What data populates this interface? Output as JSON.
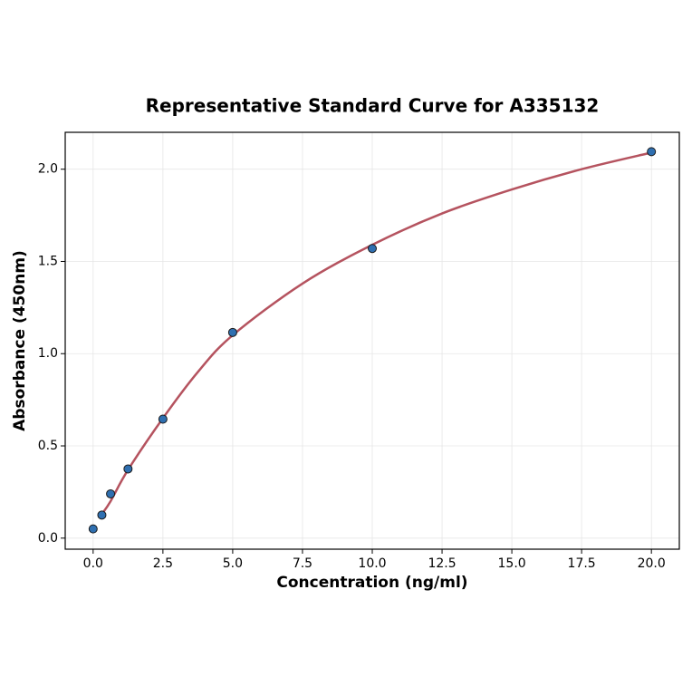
{
  "chart_data": {
    "type": "scatter",
    "title": "Representative Standard Curve for A335132",
    "x_label": "Concentration (ng/ml)",
    "y_label": "Absorbance (450nm)",
    "points": {
      "color": "#2f6fb0",
      "x": [
        0,
        0.3125,
        0.625,
        1.25,
        2.5,
        5,
        10,
        20
      ],
      "values": [
        0.05,
        0.125,
        0.24,
        0.375,
        0.645,
        1.115,
        1.57,
        2.095
      ]
    },
    "fit": {
      "color": "#b5535f",
      "x": [
        0.3125,
        0.625,
        1.25,
        2.5,
        3.75,
        5,
        7.5,
        10,
        12.5,
        15,
        17.5,
        20
      ],
      "values": [
        0.13,
        0.2,
        0.37,
        0.65,
        0.9,
        1.1,
        1.38,
        1.59,
        1.76,
        1.89,
        2.0,
        2.09
      ]
    },
    "xlim": [
      -1,
      21
    ],
    "ylim": [
      -0.06,
      2.2
    ],
    "xticks": [
      {
        "value": 0,
        "label": "0.0"
      },
      2.5,
      {
        "value": 5,
        "label": "5.0"
      },
      7.5,
      {
        "value": 10,
        "label": "10.0"
      },
      12.5,
      {
        "value": 15,
        "label": "15.0"
      },
      17.5,
      {
        "value": 20,
        "label": "20.0"
      }
    ],
    "yticks": [
      {
        "value": 0,
        "label": "0.0"
      },
      0.5,
      {
        "value": 1,
        "label": "1.0"
      },
      1.5,
      {
        "value": 2,
        "label": "2.0"
      }
    ],
    "grid": true
  }
}
